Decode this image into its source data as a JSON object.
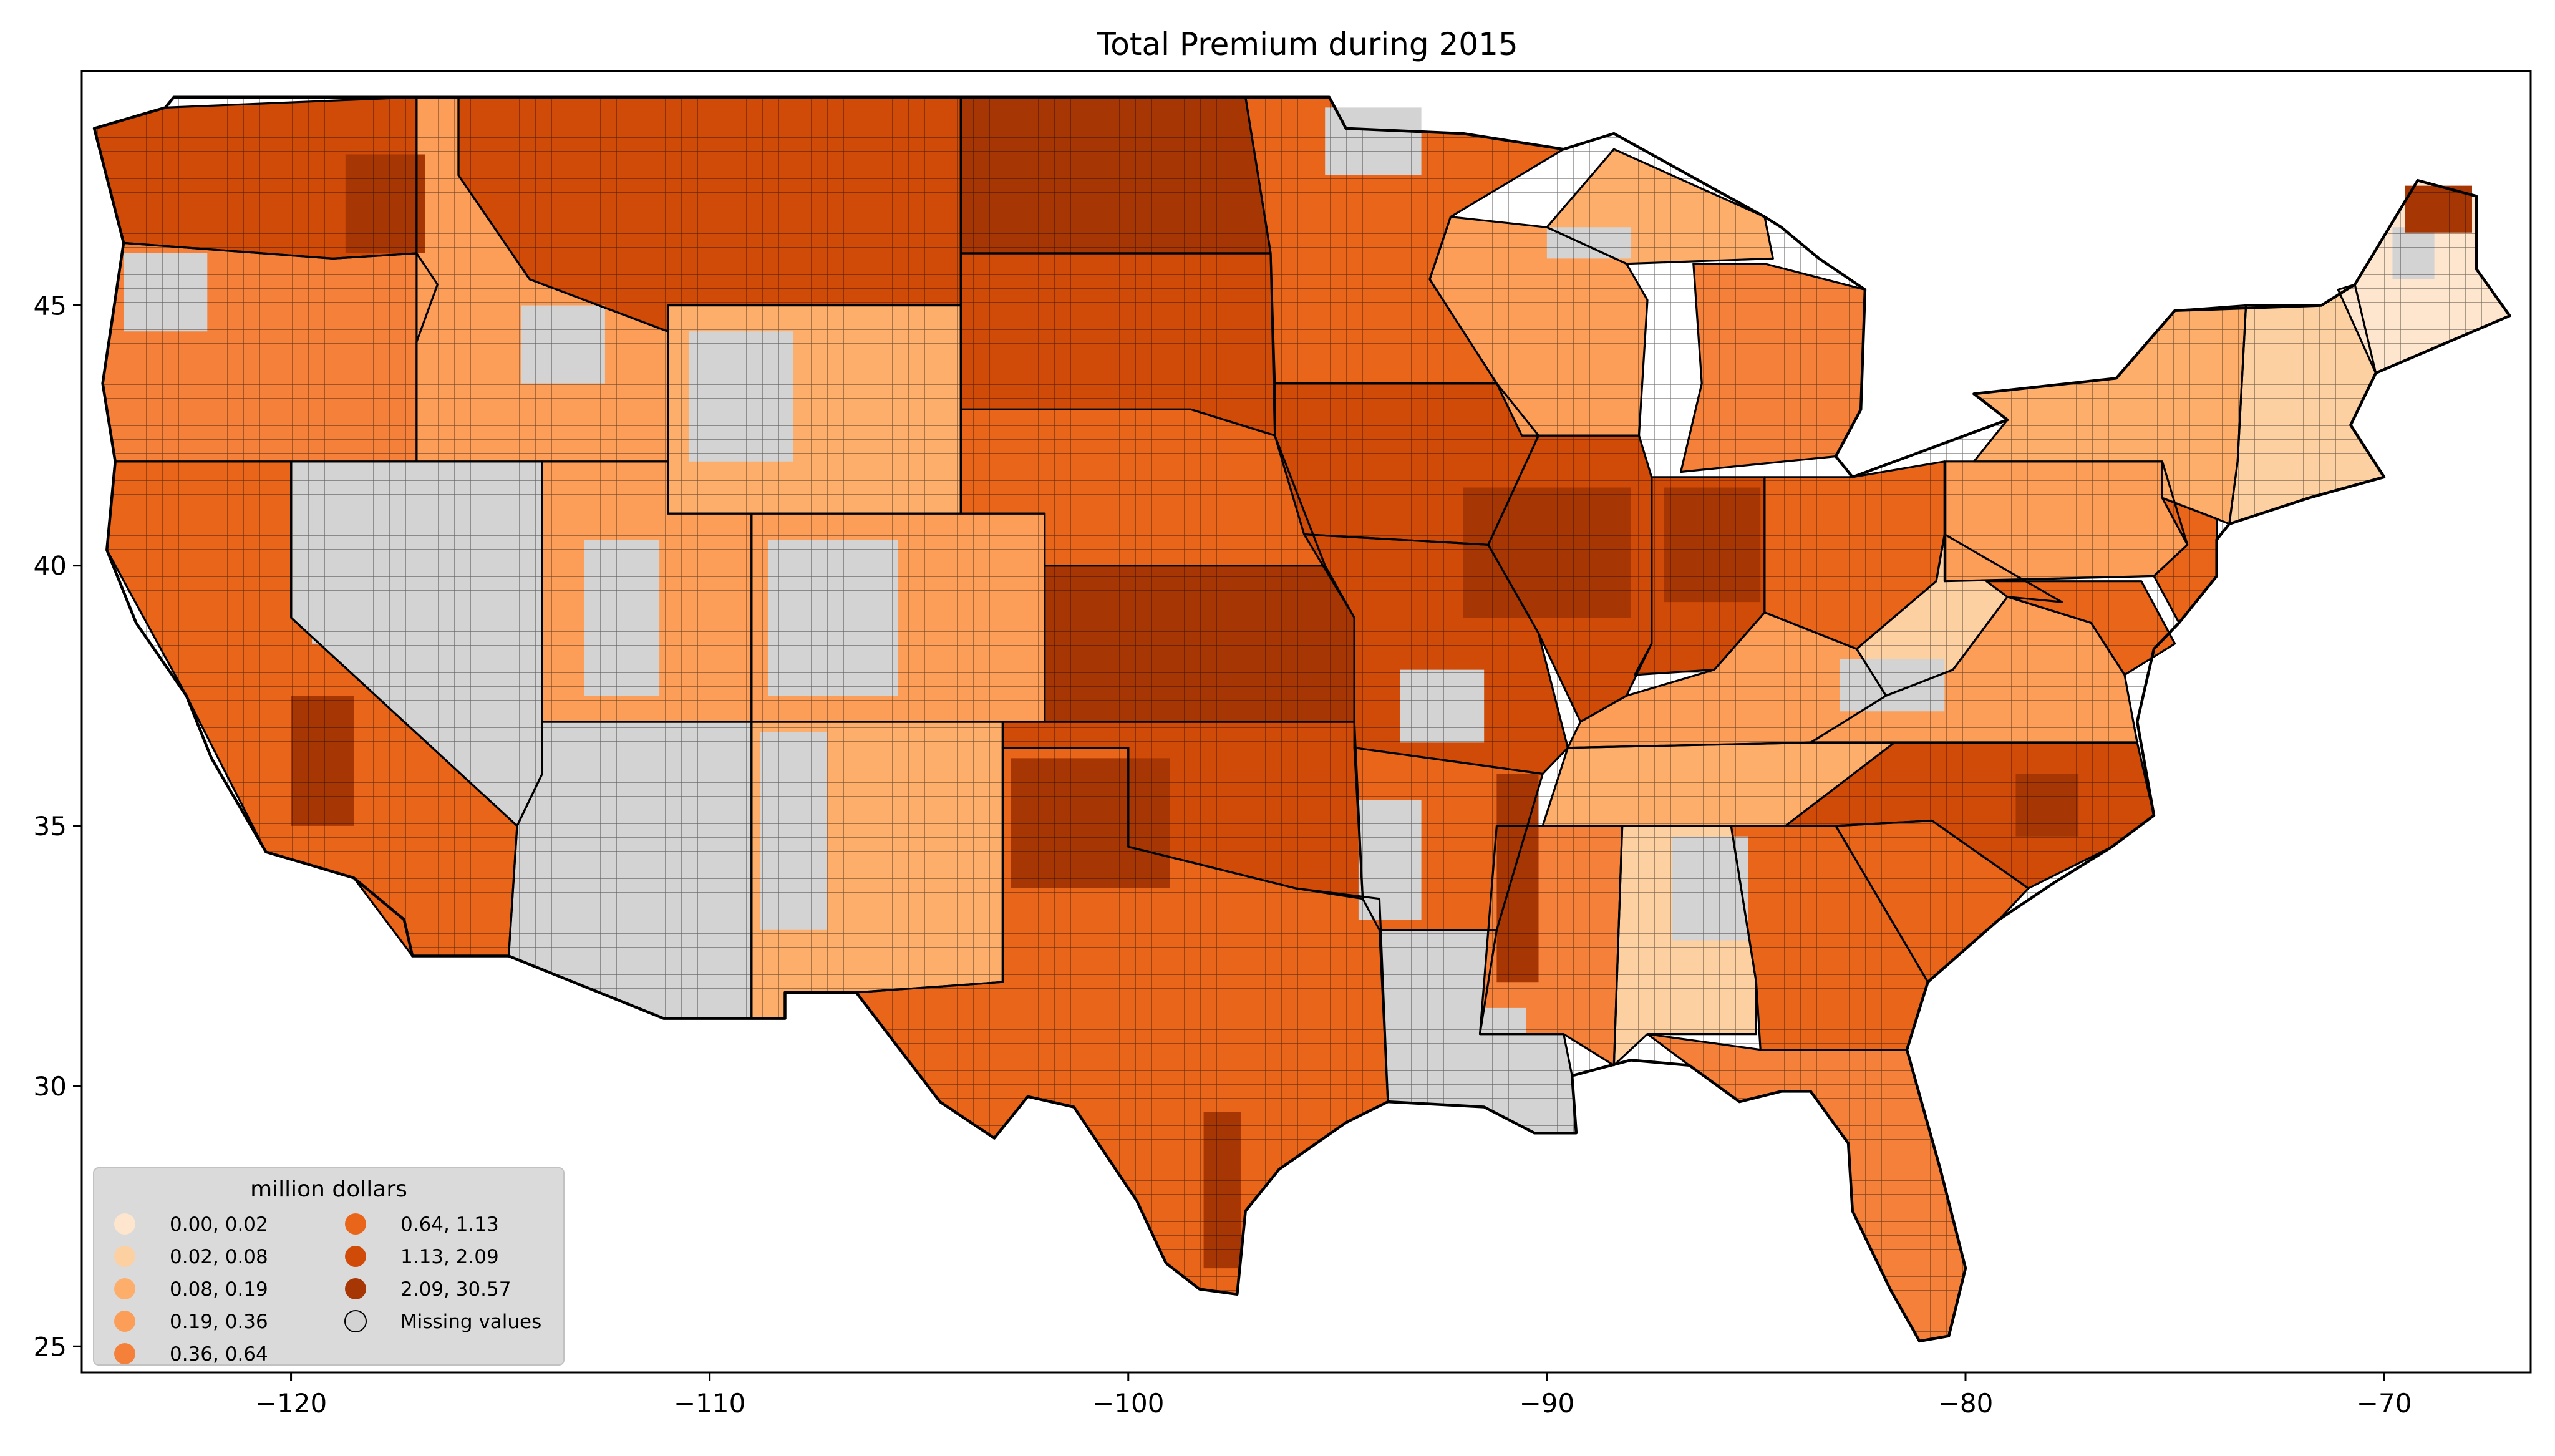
{
  "chart_data": {
    "type": "choropleth",
    "title": "Total  Premium during 2015",
    "xlim": [
      -125,
      -66.5
    ],
    "ylim": [
      24.5,
      49.5
    ],
    "x_ticks": [
      {
        "value": -120,
        "label": "−120"
      },
      {
        "value": -110,
        "label": "−110"
      },
      {
        "value": -100,
        "label": "−100"
      },
      {
        "value": -90,
        "label": "−90"
      },
      {
        "value": -80,
        "label": "−80"
      },
      {
        "value": -70,
        "label": "−70"
      }
    ],
    "y_ticks": [
      {
        "value": 25,
        "label": "25"
      },
      {
        "value": 30,
        "label": "30"
      },
      {
        "value": 35,
        "label": "35"
      },
      {
        "value": 40,
        "label": "40"
      },
      {
        "value": 45,
        "label": "45"
      }
    ],
    "legend": {
      "title": "million dollars",
      "placement": "lower-left",
      "columns": 2,
      "entries": [
        {
          "label": "0.00,  0.02",
          "min": 0.0,
          "max": 0.02,
          "color": "#fee6ce"
        },
        {
          "label": "0.02,  0.08",
          "min": 0.02,
          "max": 0.08,
          "color": "#fdd0a2"
        },
        {
          "label": "0.08,  0.19",
          "min": 0.08,
          "max": 0.19,
          "color": "#fdae6b"
        },
        {
          "label": "0.19,  0.36",
          "min": 0.19,
          "max": 0.36,
          "color": "#fd9e58"
        },
        {
          "label": "0.36,  0.64",
          "min": 0.36,
          "max": 0.64,
          "color": "#f5803a"
        },
        {
          "label": "0.64,  1.13",
          "min": 0.64,
          "max": 1.13,
          "color": "#e8651a"
        },
        {
          "label": "1.13,  2.09",
          "min": 1.13,
          "max": 2.09,
          "color": "#d04a08"
        },
        {
          "label": "2.09, 30.57",
          "min": 2.09,
          "max": 30.57,
          "color": "#a63603"
        },
        {
          "label": "Missing values",
          "color": "#d3d3d3",
          "missing": true
        }
      ]
    },
    "colors": {
      "missing": "#d3d3d3",
      "border": "#000000",
      "legend_bg": "#d9d9d9"
    }
  }
}
